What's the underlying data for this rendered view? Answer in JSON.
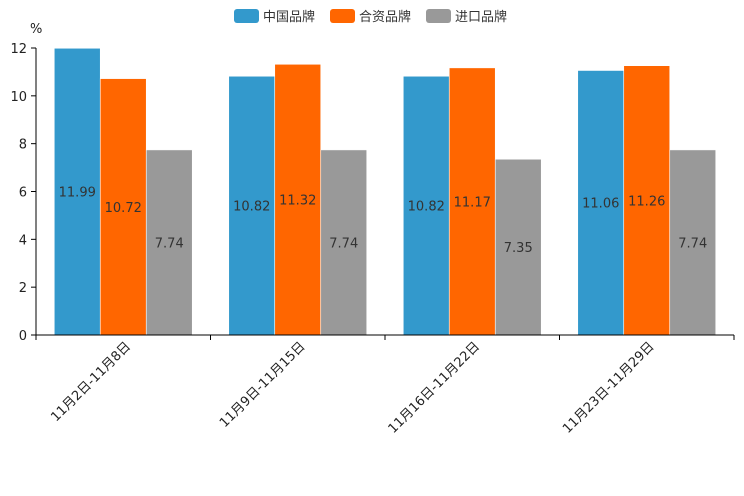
{
  "chart_data": {
    "type": "bar",
    "title": "",
    "ylabel": "%",
    "xlabel": "",
    "ylim": [
      0,
      12
    ],
    "yticks": [
      0,
      2,
      4,
      6,
      8,
      10,
      12
    ],
    "categories": [
      "11月2日-11月8日",
      "11月9日-11月15日",
      "11月16日-11月22日",
      "11月23日-11月29日"
    ],
    "series": [
      {
        "name": "中国品牌",
        "color": "#3399cc",
        "values": [
          11.99,
          10.82,
          10.82,
          11.06
        ]
      },
      {
        "name": "合资品牌",
        "color": "#ff6600",
        "values": [
          10.72,
          11.32,
          11.17,
          11.26
        ]
      },
      {
        "name": "进口品牌",
        "color": "#999999",
        "values": [
          7.74,
          7.74,
          7.35,
          7.74
        ]
      }
    ],
    "legend_position": "top-center",
    "grid": false
  }
}
